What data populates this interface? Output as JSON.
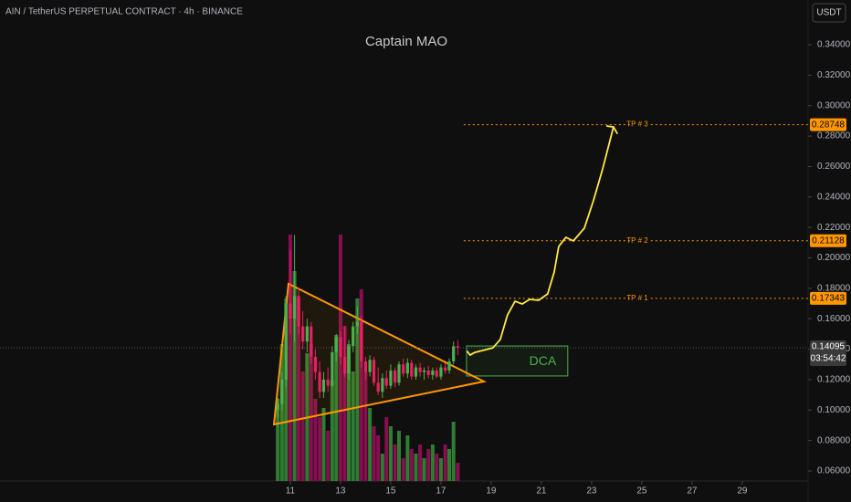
{
  "chart_data": {
    "type": "candlestick",
    "title": "AIN / TetherUS PERPETUAL CONTRACT · 4h · BINANCE",
    "watermark": "Captain MAO",
    "currency": "USDT",
    "xlim": [
      -0.56,
      31.62
    ],
    "ylim": [
      0.0534,
      0.3694
    ],
    "xticks": [
      11,
      13,
      15,
      17,
      19,
      21,
      23,
      25,
      27,
      29
    ],
    "yticks": [
      {
        "value": 0.06,
        "label": "0.06000"
      },
      {
        "value": 0.08,
        "label": "0.08000"
      },
      {
        "value": 0.1,
        "label": "0.10000"
      },
      {
        "value": 0.12,
        "label": "0.12000"
      },
      {
        "value": 0.14,
        "label": "0.14000"
      },
      {
        "value": 0.16,
        "label": "0.16000"
      },
      {
        "value": 0.18,
        "label": "0.18000"
      },
      {
        "value": 0.2,
        "label": "0.20000"
      },
      {
        "value": 0.22,
        "label": "0.22000"
      },
      {
        "value": 0.24,
        "label": "0.24000"
      },
      {
        "value": 0.26,
        "label": "0.26000"
      },
      {
        "value": 0.28,
        "label": "0.28000"
      },
      {
        "value": 0.3,
        "label": "0.30000"
      },
      {
        "value": 0.32,
        "label": "0.32000"
      },
      {
        "value": 0.34,
        "label": "0.34000"
      }
    ],
    "colors": {
      "up": "#4caf50",
      "down": "#e91e63",
      "volume_up": "#2e7d32",
      "volume_down": "#880e4f"
    },
    "candles": {
      "x": [
        10.5,
        10.67,
        10.83,
        11,
        11.17,
        11.33,
        11.5,
        11.67,
        11.83,
        12,
        12.17,
        12.33,
        12.5,
        12.67,
        12.83,
        13,
        13.17,
        13.33,
        13.5,
        13.67,
        13.83,
        14,
        14.17,
        14.33,
        14.5,
        14.67,
        14.83,
        15,
        15.17,
        15.33,
        15.5,
        15.67,
        15.83,
        16,
        16.17,
        16.33,
        16.5,
        16.67,
        16.83,
        17,
        17.17,
        17.33,
        17.5,
        17.67
      ],
      "open": [
        0.1,
        0.104,
        0.12,
        0.17,
        0.16,
        0.175,
        0.155,
        0.145,
        0.155,
        0.135,
        0.125,
        0.112,
        0.12,
        0.116,
        0.138,
        0.148,
        0.135,
        0.124,
        0.142,
        0.155,
        0.158,
        0.132,
        0.125,
        0.133,
        0.118,
        0.112,
        0.121,
        0.116,
        0.126,
        0.118,
        0.13,
        0.124,
        0.131,
        0.122,
        0.128,
        0.125,
        0.126,
        0.123,
        0.126,
        0.122,
        0.128,
        0.126,
        0.132,
        0.142
      ],
      "high": [
        0.108,
        0.125,
        0.175,
        0.205,
        0.215,
        0.18,
        0.165,
        0.16,
        0.158,
        0.14,
        0.132,
        0.125,
        0.128,
        0.142,
        0.15,
        0.152,
        0.155,
        0.146,
        0.158,
        0.168,
        0.162,
        0.135,
        0.136,
        0.135,
        0.128,
        0.124,
        0.126,
        0.13,
        0.128,
        0.132,
        0.134,
        0.134,
        0.133,
        0.13,
        0.131,
        0.128,
        0.129,
        0.128,
        0.128,
        0.13,
        0.131,
        0.134,
        0.145,
        0.146
      ],
      "low": [
        0.095,
        0.1,
        0.115,
        0.15,
        0.145,
        0.15,
        0.14,
        0.138,
        0.13,
        0.12,
        0.108,
        0.108,
        0.112,
        0.115,
        0.132,
        0.13,
        0.122,
        0.12,
        0.138,
        0.15,
        0.128,
        0.12,
        0.122,
        0.116,
        0.11,
        0.108,
        0.114,
        0.114,
        0.115,
        0.116,
        0.122,
        0.121,
        0.12,
        0.12,
        0.122,
        0.12,
        0.121,
        0.12,
        0.121,
        0.12,
        0.124,
        0.124,
        0.13,
        0.136
      ],
      "close": [
        0.104,
        0.12,
        0.17,
        0.16,
        0.175,
        0.155,
        0.145,
        0.155,
        0.135,
        0.125,
        0.112,
        0.12,
        0.116,
        0.138,
        0.148,
        0.135,
        0.124,
        0.142,
        0.155,
        0.158,
        0.132,
        0.125,
        0.133,
        0.118,
        0.112,
        0.121,
        0.116,
        0.126,
        0.118,
        0.13,
        0.124,
        0.131,
        0.122,
        0.128,
        0.125,
        0.126,
        0.123,
        0.126,
        0.122,
        0.128,
        0.126,
        0.132,
        0.142,
        0.14095
      ],
      "volume": [
        90,
        150,
        200,
        270,
        230,
        200,
        120,
        140,
        150,
        90,
        70,
        80,
        55,
        110,
        160,
        270,
        170,
        150,
        120,
        200,
        210,
        120,
        80,
        60,
        50,
        30,
        70,
        60,
        40,
        55,
        25,
        50,
        35,
        30,
        40,
        25,
        35,
        40,
        30,
        25,
        40,
        35,
        65,
        20
      ]
    },
    "last_price": 0.14095,
    "countdown": "03:54:42",
    "targets": [
      {
        "name": "TP # 3",
        "value": 0.28748
      },
      {
        "name": "TP # 2",
        "value": 0.21128
      },
      {
        "name": "TP # 1",
        "value": 0.17343
      }
    ],
    "target_color": "#ff9800",
    "pattern": {
      "x": [
        10.35,
        10.93,
        18.71
      ],
      "y": [
        0.0906,
        0.183,
        0.1188
      ],
      "color": "#ff9800"
    },
    "zone": {
      "label": "DCA",
      "x": [
        18.02,
        22.05
      ],
      "y": [
        0.1224,
        0.1421
      ],
      "color": "#4caf50"
    },
    "projection": {
      "x": [
        18.05,
        18.16,
        18.35,
        19.07,
        19.36,
        19.65,
        19.95,
        20.24,
        20.53,
        20.89,
        21.25,
        21.51,
        21.69,
        21.98,
        22.27,
        22.71,
        23.07,
        23.44,
        23.87
      ],
      "y": [
        0.1385,
        0.1361,
        0.1379,
        0.1409,
        0.1463,
        0.1625,
        0.1715,
        0.1697,
        0.1727,
        0.1721,
        0.1763,
        0.1907,
        0.2075,
        0.2135,
        0.2111,
        0.2195,
        0.2375,
        0.2585,
        0.286
      ],
      "color": "#ffeb3b"
    }
  }
}
